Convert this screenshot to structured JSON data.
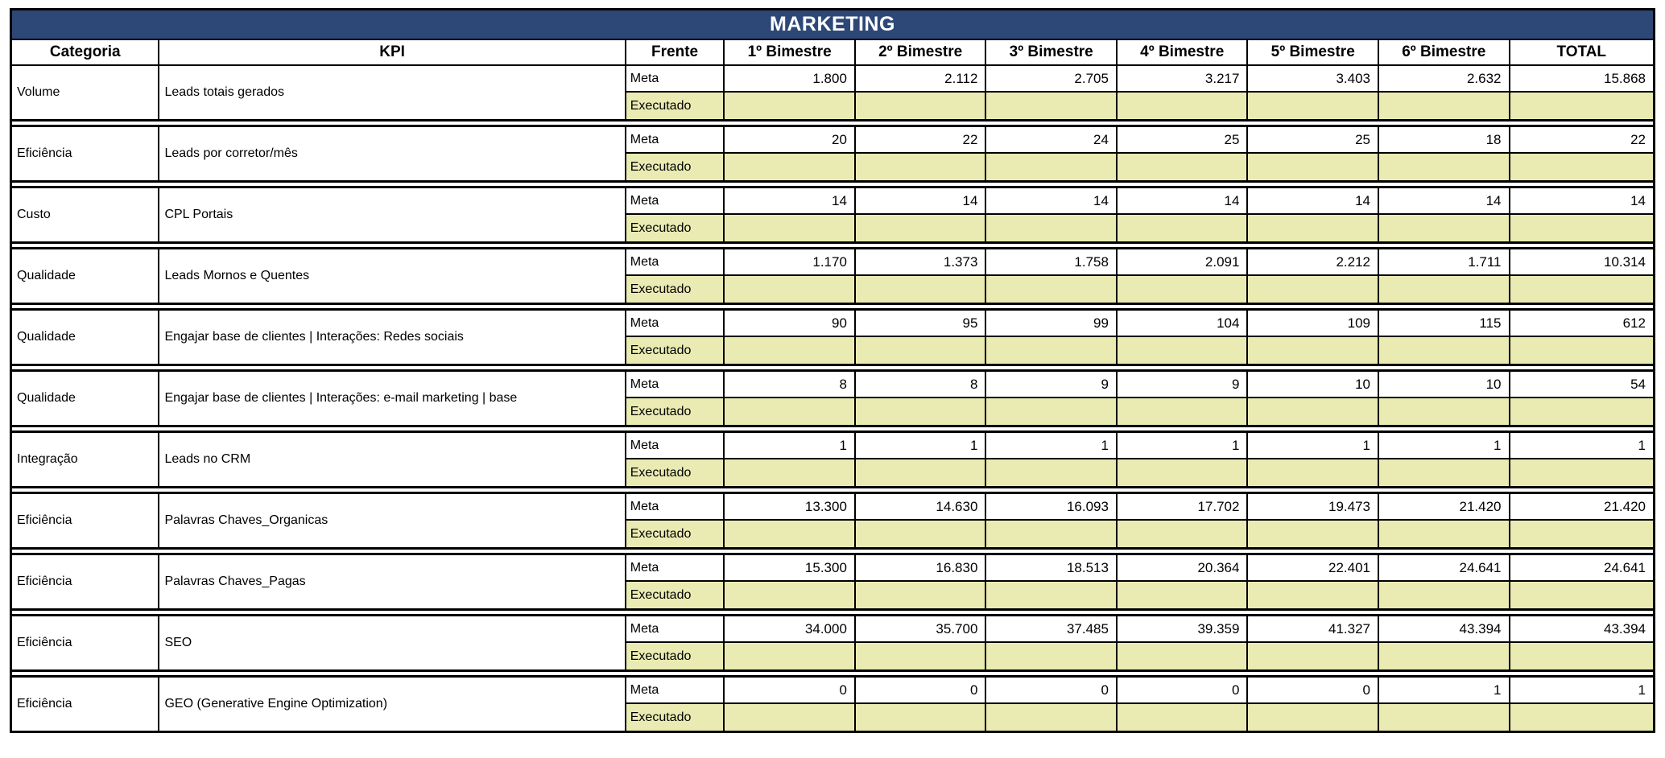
{
  "title": "MARKETING",
  "columns": [
    "Categoria",
    "KPI",
    "Frente",
    "1º Bimestre",
    "2º Bimestre",
    "3º Bimestre",
    "4º Bimestre",
    "5º Bimestre",
    "6º Bimestre",
    "TOTAL"
  ],
  "frente_labels": {
    "meta": "Meta",
    "executado": "Executado"
  },
  "colors": {
    "title_bg": "#2d4877",
    "title_text": "#ffffff",
    "executado_bg": "#e9ebb3",
    "border": "#000000"
  },
  "rows": [
    {
      "categoria": "Volume",
      "kpi": "Leads totais gerados",
      "meta": [
        "1.800",
        "2.112",
        "2.705",
        "3.217",
        "3.403",
        "2.632",
        "15.868"
      ],
      "executado": [
        "",
        "",
        "",
        "",
        "",
        "",
        ""
      ]
    },
    {
      "categoria": "Eficiência",
      "kpi": "Leads por corretor/mês",
      "meta": [
        "20",
        "22",
        "24",
        "25",
        "25",
        "18",
        "22"
      ],
      "executado": [
        "",
        "",
        "",
        "",
        "",
        "",
        ""
      ]
    },
    {
      "categoria": "Custo",
      "kpi": "CPL Portais",
      "meta": [
        "14",
        "14",
        "14",
        "14",
        "14",
        "14",
        "14"
      ],
      "executado": [
        "",
        "",
        "",
        "",
        "",
        "",
        ""
      ]
    },
    {
      "categoria": "Qualidade",
      "kpi": "Leads Mornos e Quentes",
      "meta": [
        "1.170",
        "1.373",
        "1.758",
        "2.091",
        "2.212",
        "1.711",
        "10.314"
      ],
      "executado": [
        "",
        "",
        "",
        "",
        "",
        "",
        ""
      ]
    },
    {
      "categoria": "Qualidade",
      "kpi": "Engajar base de clientes | Interações: Redes sociais",
      "meta": [
        "90",
        "95",
        "99",
        "104",
        "109",
        "115",
        "612"
      ],
      "executado": [
        "",
        "",
        "",
        "",
        "",
        "",
        ""
      ]
    },
    {
      "categoria": "Qualidade",
      "kpi": "Engajar base de clientes | Interações: e-mail marketing | base",
      "meta": [
        "8",
        "8",
        "9",
        "9",
        "10",
        "10",
        "54"
      ],
      "executado": [
        "",
        "",
        "",
        "",
        "",
        "",
        ""
      ]
    },
    {
      "categoria": "Integração",
      "kpi": "Leads no CRM",
      "meta": [
        "1",
        "1",
        "1",
        "1",
        "1",
        "1",
        "1"
      ],
      "executado": [
        "",
        "",
        "",
        "",
        "",
        "",
        ""
      ]
    },
    {
      "categoria": "Eficiência",
      "kpi": "Palavras Chaves_Organicas",
      "meta": [
        "13.300",
        "14.630",
        "16.093",
        "17.702",
        "19.473",
        "21.420",
        "21.420"
      ],
      "executado": [
        "",
        "",
        "",
        "",
        "",
        "",
        ""
      ]
    },
    {
      "categoria": "Eficiência",
      "kpi": "Palavras Chaves_Pagas",
      "meta": [
        "15.300",
        "16.830",
        "18.513",
        "20.364",
        "22.401",
        "24.641",
        "24.641"
      ],
      "executado": [
        "",
        "",
        "",
        "",
        "",
        "",
        ""
      ]
    },
    {
      "categoria": "Eficiência",
      "kpi": "SEO",
      "meta": [
        "34.000",
        "35.700",
        "37.485",
        "39.359",
        "41.327",
        "43.394",
        "43.394"
      ],
      "executado": [
        "",
        "",
        "",
        "",
        "",
        "",
        ""
      ]
    },
    {
      "categoria": "Eficiência",
      "kpi": "GEO (Generative Engine Optimization)",
      "meta": [
        "0",
        "0",
        "0",
        "0",
        "0",
        "1",
        "1"
      ],
      "executado": [
        "",
        "",
        "",
        "",
        "",
        "",
        ""
      ]
    }
  ]
}
